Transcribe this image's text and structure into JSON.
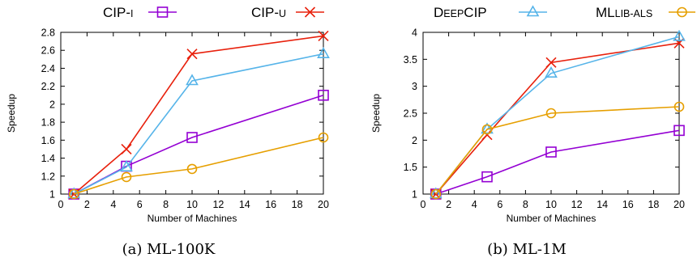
{
  "legend": {
    "items": [
      {
        "label": "CIP-I",
        "color": "#9400d3",
        "marker": "square-open"
      },
      {
        "label": "CIP-U",
        "color": "#e8200c",
        "marker": "cross"
      },
      {
        "label": "DEEPCIP",
        "color": "#56b4e9",
        "marker": "triangle-open"
      },
      {
        "label": "MLLIB-ALS",
        "color": "#e69f00",
        "marker": "circle-open"
      }
    ]
  },
  "chart_data": [
    {
      "type": "line",
      "caption": "(a)  ML-100K",
      "xlabel": "Number of Machines",
      "ylabel": "Speedup",
      "xlim": [
        0,
        20
      ],
      "ylim": [
        1,
        2.8
      ],
      "xticks": [
        0,
        2,
        4,
        6,
        8,
        10,
        12,
        14,
        16,
        18,
        20
      ],
      "yticks": [
        1,
        1.2,
        1.4,
        1.6,
        1.8,
        2,
        2.2,
        2.4,
        2.6,
        2.8
      ],
      "x": [
        1,
        5,
        10,
        20
      ],
      "grid": false,
      "series": [
        {
          "name": "CIP-I",
          "color": "#9400d3",
          "marker": "square-open",
          "values": [
            1.0,
            1.31,
            1.63,
            2.1
          ]
        },
        {
          "name": "CIP-U",
          "color": "#e8200c",
          "marker": "cross",
          "values": [
            1.0,
            1.5,
            2.56,
            2.76
          ]
        },
        {
          "name": "DEEPCIP",
          "color": "#56b4e9",
          "marker": "triangle-open",
          "values": [
            1.0,
            1.3,
            2.26,
            2.56
          ]
        },
        {
          "name": "MLLIB-ALS",
          "color": "#e69f00",
          "marker": "circle-open",
          "values": [
            1.0,
            1.19,
            1.28,
            1.63
          ]
        }
      ]
    },
    {
      "type": "line",
      "caption": "(b)  ML-1M",
      "xlabel": "Number of Machines",
      "ylabel": "Speedup",
      "xlim": [
        0,
        20
      ],
      "ylim": [
        1,
        4
      ],
      "xticks": [
        0,
        2,
        4,
        6,
        8,
        10,
        12,
        14,
        16,
        18,
        20
      ],
      "yticks": [
        1,
        1.5,
        2,
        2.5,
        3,
        3.5,
        4
      ],
      "x": [
        1,
        5,
        10,
        20
      ],
      "grid": false,
      "series": [
        {
          "name": "CIP-I",
          "color": "#9400d3",
          "marker": "square-open",
          "values": [
            1.0,
            1.32,
            1.78,
            2.18
          ]
        },
        {
          "name": "CIP-U",
          "color": "#e8200c",
          "marker": "cross",
          "values": [
            1.0,
            2.1,
            3.44,
            3.8
          ]
        },
        {
          "name": "DEEPCIP",
          "color": "#56b4e9",
          "marker": "triangle-open",
          "values": [
            1.0,
            2.2,
            3.24,
            3.92
          ]
        },
        {
          "name": "MLLIB-ALS",
          "color": "#e69f00",
          "marker": "circle-open",
          "values": [
            1.0,
            2.2,
            2.5,
            2.62
          ]
        }
      ]
    }
  ]
}
